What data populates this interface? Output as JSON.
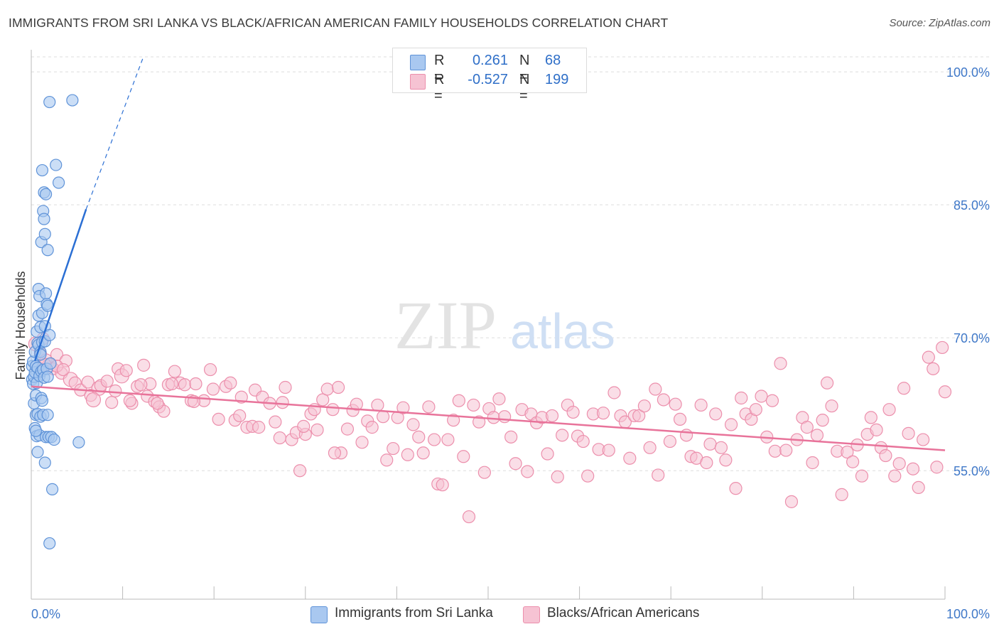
{
  "title": "IMMIGRANTS FROM SRI LANKA VS BLACK/AFRICAN AMERICAN FAMILY HOUSEHOLDS CORRELATION CHART",
  "source": "Source: ZipAtlas.com",
  "watermark": {
    "zip": "ZIP",
    "atlas": "atlas"
  },
  "legend": {
    "r_label": "R =",
    "n_label": "N =",
    "series1": {
      "r": "0.261",
      "n": "68"
    },
    "series2": {
      "r": "-0.527",
      "n": "199"
    }
  },
  "colors": {
    "blue_fill": "#a9c8f0",
    "blue_stroke": "#5f93d8",
    "blue_line": "#2b6fd4",
    "pink_fill": "#f6c3d3",
    "pink_stroke": "#ec8fac",
    "pink_line": "#e8739a",
    "axis_label": "#3f78c8",
    "grid": "#dddddd"
  },
  "chart_data": {
    "type": "scatter",
    "title": "IMMIGRANTS FROM SRI LANKA VS BLACK/AFRICAN AMERICAN FAMILY HOUSEHOLDS CORRELATION CHART",
    "xlabel": "",
    "ylabel": "Family Households",
    "xlim": [
      0,
      100
    ],
    "ylim": [
      40.5,
      102.5
    ],
    "x_tick_labels": [
      "0.0%",
      "100.0%"
    ],
    "y_ticks": [
      55,
      70,
      85,
      100
    ],
    "y_tick_labels": [
      "55.0%",
      "70.0%",
      "85.0%",
      "100.0%"
    ],
    "grid": true,
    "legend_position": "top-center",
    "series": [
      {
        "name": "Immigrants from Sri Lanka",
        "color": "#5f93d8",
        "r": 0.261,
        "n": 68,
        "trend": {
          "x0": 0.4,
          "y0": 67.4,
          "x1": 6.0,
          "y1": 84.5,
          "dash_x1": 12.2,
          "dash_y1": 101.5
        },
        "points": [
          [
            0.1,
            65.3
          ],
          [
            0.1,
            66.8
          ],
          [
            0.2,
            64.8
          ],
          [
            0.2,
            67.3
          ],
          [
            0.3,
            62.6
          ],
          [
            0.3,
            65.6
          ],
          [
            0.4,
            68.4
          ],
          [
            0.4,
            59.8
          ],
          [
            0.4,
            66.1
          ],
          [
            0.5,
            61.3
          ],
          [
            0.5,
            63.5
          ],
          [
            0.5,
            66.8
          ],
          [
            0.6,
            70.7
          ],
          [
            0.6,
            64.9
          ],
          [
            0.6,
            58.9
          ],
          [
            0.7,
            61.4
          ],
          [
            0.7,
            66.6
          ],
          [
            0.7,
            69.4
          ],
          [
            0.7,
            57.1
          ],
          [
            0.8,
            72.5
          ],
          [
            0.8,
            75.5
          ],
          [
            0.8,
            69.2
          ],
          [
            0.9,
            65.7
          ],
          [
            0.9,
            59.0
          ],
          [
            0.9,
            74.7
          ],
          [
            1.0,
            61.1
          ],
          [
            1.0,
            71.2
          ],
          [
            1.0,
            68.4
          ],
          [
            1.1,
            66.2
          ],
          [
            1.1,
            63.2
          ],
          [
            1.1,
            80.8
          ],
          [
            1.2,
            69.5
          ],
          [
            1.2,
            72.8
          ],
          [
            1.2,
            88.9
          ],
          [
            1.3,
            61.3
          ],
          [
            1.3,
            66.4
          ],
          [
            1.3,
            84.3
          ],
          [
            1.4,
            86.4
          ],
          [
            1.4,
            83.4
          ],
          [
            1.4,
            65.5
          ],
          [
            1.5,
            69.6
          ],
          [
            1.5,
            71.3
          ],
          [
            1.5,
            81.7
          ],
          [
            1.5,
            55.9
          ],
          [
            1.6,
            86.2
          ],
          [
            1.6,
            75.0
          ],
          [
            1.6,
            58.8
          ],
          [
            1.7,
            73.8
          ],
          [
            1.7,
            66.5
          ],
          [
            1.8,
            61.3
          ],
          [
            1.8,
            73.6
          ],
          [
            1.8,
            65.6
          ],
          [
            1.8,
            79.9
          ],
          [
            1.9,
            58.8
          ],
          [
            2.0,
            70.3
          ],
          [
            2.0,
            46.8
          ],
          [
            2.0,
            96.6
          ],
          [
            2.1,
            67.1
          ],
          [
            2.2,
            58.8
          ],
          [
            2.3,
            52.9
          ],
          [
            2.5,
            58.5
          ],
          [
            2.7,
            89.5
          ],
          [
            3.0,
            87.5
          ],
          [
            4.5,
            96.8
          ],
          [
            5.2,
            58.2
          ],
          [
            0.5,
            59.5
          ],
          [
            1.0,
            68.1
          ],
          [
            1.2,
            62.9
          ]
        ]
      },
      {
        "name": "Blacks/African Americans",
        "color": "#ec8fac",
        "r": -0.527,
        "n": 199,
        "trend": {
          "x0": 0,
          "y0": 64.5,
          "x1": 100,
          "y1": 57.3
        },
        "points": [
          [
            0.5,
            69.3
          ],
          [
            0.8,
            66.6
          ],
          [
            1.0,
            68.2
          ],
          [
            1.3,
            69.9
          ],
          [
            1.6,
            67.5
          ],
          [
            2.0,
            66.9
          ],
          [
            2.4,
            66.5
          ],
          [
            2.8,
            68.1
          ],
          [
            3.3,
            66.0
          ],
          [
            3.8,
            67.4
          ],
          [
            4.3,
            65.3
          ],
          [
            4.8,
            64.9
          ],
          [
            5.4,
            64.1
          ],
          [
            6.2,
            65.0
          ],
          [
            6.5,
            63.5
          ],
          [
            7.4,
            64.3
          ],
          [
            7.6,
            64.6
          ],
          [
            8.3,
            65.1
          ],
          [
            8.8,
            62.7
          ],
          [
            9.5,
            66.5
          ],
          [
            9.9,
            65.7
          ],
          [
            10.4,
            66.3
          ],
          [
            11.0,
            62.6
          ],
          [
            11.6,
            64.5
          ],
          [
            12.3,
            66.9
          ],
          [
            12.7,
            63.4
          ],
          [
            13.0,
            64.8
          ],
          [
            13.5,
            62.8
          ],
          [
            14.0,
            62.2
          ],
          [
            14.5,
            61.7
          ],
          [
            15.0,
            64.7
          ],
          [
            15.7,
            66.2
          ],
          [
            16.3,
            64.9
          ],
          [
            16.8,
            64.7
          ],
          [
            17.5,
            62.9
          ],
          [
            18.0,
            64.8
          ],
          [
            18.9,
            62.9
          ],
          [
            19.6,
            66.4
          ],
          [
            20.5,
            60.8
          ],
          [
            21.3,
            64.5
          ],
          [
            21.8,
            64.9
          ],
          [
            22.3,
            60.7
          ],
          [
            23.0,
            63.3
          ],
          [
            23.6,
            59.9
          ],
          [
            24.2,
            60.0
          ],
          [
            24.5,
            64.1
          ],
          [
            25.3,
            63.3
          ],
          [
            26.1,
            62.6
          ],
          [
            26.7,
            60.5
          ],
          [
            27.2,
            58.7
          ],
          [
            27.8,
            64.4
          ],
          [
            28.5,
            58.5
          ],
          [
            29.0,
            59.3
          ],
          [
            29.4,
            55.0
          ],
          [
            30.0,
            59.1
          ],
          [
            30.6,
            61.4
          ],
          [
            31.3,
            59.6
          ],
          [
            31.9,
            63.0
          ],
          [
            32.4,
            64.2
          ],
          [
            33.0,
            61.9
          ],
          [
            33.6,
            64.4
          ],
          [
            33.9,
            57.0
          ],
          [
            34.6,
            59.7
          ],
          [
            35.2,
            61.8
          ],
          [
            35.6,
            62.5
          ],
          [
            36.2,
            58.2
          ],
          [
            36.8,
            60.6
          ],
          [
            37.3,
            59.9
          ],
          [
            37.9,
            62.4
          ],
          [
            38.5,
            61.1
          ],
          [
            38.9,
            56.2
          ],
          [
            39.6,
            57.5
          ],
          [
            40.1,
            61.0
          ],
          [
            40.7,
            62.1
          ],
          [
            41.2,
            56.8
          ],
          [
            41.8,
            60.2
          ],
          [
            42.4,
            58.8
          ],
          [
            42.9,
            57.0
          ],
          [
            43.5,
            62.2
          ],
          [
            44.1,
            58.5
          ],
          [
            44.5,
            53.5
          ],
          [
            45.0,
            53.4
          ],
          [
            45.6,
            58.5
          ],
          [
            46.2,
            60.7
          ],
          [
            46.8,
            62.9
          ],
          [
            47.3,
            56.6
          ],
          [
            47.9,
            49.8
          ],
          [
            48.4,
            62.4
          ],
          [
            49.0,
            60.5
          ],
          [
            49.6,
            54.8
          ],
          [
            50.1,
            62.0
          ],
          [
            50.6,
            61.0
          ],
          [
            51.2,
            63.1
          ],
          [
            51.8,
            61.1
          ],
          [
            52.5,
            58.8
          ],
          [
            53.0,
            55.8
          ],
          [
            53.7,
            61.9
          ],
          [
            54.3,
            54.9
          ],
          [
            54.7,
            61.4
          ],
          [
            55.3,
            60.4
          ],
          [
            55.9,
            61.0
          ],
          [
            56.5,
            56.9
          ],
          [
            57.0,
            61.2
          ],
          [
            57.6,
            54.3
          ],
          [
            58.1,
            59.0
          ],
          [
            58.7,
            62.4
          ],
          [
            59.3,
            61.6
          ],
          [
            59.8,
            58.9
          ],
          [
            60.4,
            58.3
          ],
          [
            60.9,
            54.4
          ],
          [
            61.5,
            61.4
          ],
          [
            62.1,
            57.4
          ],
          [
            62.6,
            61.5
          ],
          [
            63.2,
            57.3
          ],
          [
            63.8,
            63.8
          ],
          [
            64.5,
            61.2
          ],
          [
            65.0,
            60.5
          ],
          [
            65.5,
            56.4
          ],
          [
            66.0,
            61.2
          ],
          [
            66.5,
            61.2
          ],
          [
            67.1,
            62.3
          ],
          [
            67.7,
            57.6
          ],
          [
            68.3,
            64.2
          ],
          [
            68.6,
            54.5
          ],
          [
            69.2,
            63.0
          ],
          [
            69.9,
            58.3
          ],
          [
            70.5,
            62.5
          ],
          [
            71.0,
            60.8
          ],
          [
            71.7,
            59.0
          ],
          [
            72.2,
            56.6
          ],
          [
            72.8,
            56.4
          ],
          [
            73.3,
            62.4
          ],
          [
            73.9,
            55.9
          ],
          [
            74.3,
            58.0
          ],
          [
            74.9,
            61.4
          ],
          [
            75.5,
            57.6
          ],
          [
            76.0,
            56.2
          ],
          [
            76.6,
            60.2
          ],
          [
            77.1,
            53.0
          ],
          [
            77.7,
            63.2
          ],
          [
            78.2,
            61.4
          ],
          [
            78.8,
            60.8
          ],
          [
            79.3,
            61.9
          ],
          [
            79.9,
            63.4
          ],
          [
            80.5,
            58.8
          ],
          [
            81.1,
            62.9
          ],
          [
            81.4,
            57.2
          ],
          [
            82.0,
            67.1
          ],
          [
            82.6,
            57.3
          ],
          [
            83.2,
            51.5
          ],
          [
            83.8,
            58.5
          ],
          [
            84.4,
            61.0
          ],
          [
            84.9,
            59.9
          ],
          [
            85.5,
            55.9
          ],
          [
            86.0,
            59.0
          ],
          [
            86.6,
            60.7
          ],
          [
            87.1,
            64.9
          ],
          [
            87.6,
            62.3
          ],
          [
            88.2,
            57.2
          ],
          [
            88.7,
            52.3
          ],
          [
            89.3,
            57.1
          ],
          [
            89.9,
            56.0
          ],
          [
            90.4,
            57.9
          ],
          [
            90.9,
            54.4
          ],
          [
            91.5,
            59.1
          ],
          [
            91.9,
            61.0
          ],
          [
            92.5,
            59.6
          ],
          [
            93.0,
            57.6
          ],
          [
            93.5,
            56.7
          ],
          [
            93.9,
            61.9
          ],
          [
            94.5,
            54.4
          ],
          [
            95.0,
            55.8
          ],
          [
            95.5,
            64.3
          ],
          [
            96.0,
            59.2
          ],
          [
            96.5,
            55.2
          ],
          [
            97.1,
            53.1
          ],
          [
            97.6,
            58.5
          ],
          [
            98.2,
            67.8
          ],
          [
            98.7,
            66.5
          ],
          [
            99.1,
            55.4
          ],
          [
            99.7,
            68.9
          ],
          [
            100.0,
            63.9
          ],
          [
            1.5,
            67.0
          ],
          [
            2.8,
            66.8
          ],
          [
            3.5,
            66.4
          ],
          [
            6.8,
            63.0
          ],
          [
            9.2,
            64.0
          ],
          [
            10.8,
            62.9
          ],
          [
            12.0,
            64.7
          ],
          [
            13.8,
            62.6
          ],
          [
            15.4,
            64.8
          ],
          [
            17.8,
            62.8
          ],
          [
            19.9,
            64.2
          ],
          [
            22.8,
            61.2
          ],
          [
            24.9,
            59.9
          ],
          [
            27.5,
            62.7
          ],
          [
            29.8,
            60.0
          ],
          [
            31.0,
            61.9
          ],
          [
            33.2,
            57.0
          ]
        ]
      }
    ]
  },
  "bottom_legend": {
    "series1_label": "Immigrants from Sri Lanka",
    "series2_label": "Blacks/African Americans"
  }
}
